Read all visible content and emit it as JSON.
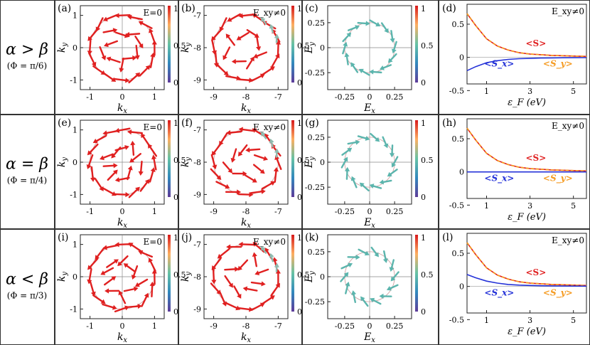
{
  "rows": [
    {
      "condition": "α > β",
      "phi": "(Φ = π/6)",
      "panels": [
        "(a)",
        "(b)",
        "(c)",
        "(d)"
      ]
    },
    {
      "condition": "α = β",
      "phi": "(Φ = π/4)",
      "panels": [
        "(e)",
        "(f)",
        "(g)",
        "(h)"
      ]
    },
    {
      "condition": "α < β",
      "phi": "(Φ = π/3)",
      "panels": [
        "(i)",
        "(j)",
        "(k)",
        "(l)"
      ]
    }
  ],
  "colorbar": {
    "ticks": [
      "1",
      "0.5",
      "0"
    ],
    "colors": [
      "#d7191c",
      "#fdae61",
      "#66c2a5",
      "#3288bd",
      "#5e3c99"
    ]
  },
  "chart_data": [
    {
      "type": "vector-field",
      "panel": "momentum-space spin texture, E=0",
      "annotation": "E=0",
      "xlabel": "k_x",
      "ylabel": "k_y",
      "xlim": [
        -1.3,
        1.3
      ],
      "ylim": [
        -1.3,
        1.3
      ],
      "xticks": [
        "-1",
        "0",
        "1"
      ],
      "yticks": [
        "1",
        "0",
        "-1"
      ],
      "circle_radius": 1.0,
      "arrow_color": "#e02020"
    },
    {
      "type": "vector-field",
      "panel": "momentum-space spin texture, shifted Fermi circle",
      "annotation": "E_xy≠0",
      "xlabel": "k_x",
      "ylabel": "k_y",
      "xlim": [
        -9.3,
        -6.7
      ],
      "ylim": [
        -9.3,
        -6.7
      ],
      "xticks": [
        "-9",
        "-8",
        "-7"
      ],
      "yticks": [
        "-7",
        "-8",
        "-9"
      ],
      "center": [
        -8,
        -8
      ],
      "circle_radius": 1.0,
      "arrow_color": "#e02020"
    },
    {
      "type": "vector-field",
      "panel": "electric-field texture",
      "xlabel": "E_x",
      "ylabel": "E_y",
      "xlim": [
        -0.42,
        0.42
      ],
      "ylim": [
        -0.42,
        0.42
      ],
      "xticks": [
        "-0.25",
        "0",
        "0.25"
      ],
      "yticks": [
        "0.25",
        "0",
        "-0.25"
      ],
      "circle_radius": 0.25,
      "arrow_color": "#5bb5ad"
    },
    {
      "type": "line",
      "annotation": "E_xy≠0",
      "xlabel": "ε_F (eV)",
      "xticks": [
        "1",
        "3",
        "5"
      ],
      "xlim": [
        0.1,
        5.6
      ],
      "ylim": [
        -0.4,
        0.8
      ],
      "yticks": [
        "0.5",
        "0",
        "-0.5"
      ],
      "x": [
        0.1,
        0.5,
        1,
        1.5,
        2,
        2.5,
        3,
        3.5,
        4,
        4.5,
        5,
        5.6
      ],
      "series_by_row": [
        [
          {
            "name": "<S>",
            "color": "#e02020",
            "dash": "solid",
            "values": [
              0.66,
              0.48,
              0.28,
              0.17,
              0.11,
              0.07,
              0.05,
              0.04,
              0.03,
              0.025,
              0.02,
              0.015
            ]
          },
          {
            "name": "<S_y>",
            "color": "#f59b22",
            "dash": "dashed",
            "values": [
              0.66,
              0.48,
              0.28,
              0.17,
              0.11,
              0.07,
              0.05,
              0.04,
              0.03,
              0.025,
              0.02,
              0.015
            ]
          },
          {
            "name": "<S_x>",
            "color": "#2432d8",
            "dash": "solid",
            "values": [
              -0.2,
              -0.14,
              -0.08,
              -0.05,
              -0.03,
              -0.02,
              -0.015,
              -0.01,
              -0.008,
              -0.006,
              -0.005,
              -0.004
            ]
          }
        ],
        [
          {
            "name": "<S>",
            "color": "#e02020",
            "dash": "solid",
            "values": [
              0.66,
              0.48,
              0.28,
              0.17,
              0.11,
              0.07,
              0.05,
              0.04,
              0.03,
              0.025,
              0.02,
              0.015
            ]
          },
          {
            "name": "<S_y>",
            "color": "#f59b22",
            "dash": "dashed",
            "values": [
              0.66,
              0.48,
              0.28,
              0.17,
              0.11,
              0.07,
              0.05,
              0.04,
              0.03,
              0.025,
              0.02,
              0.015
            ]
          },
          {
            "name": "<S_x>",
            "color": "#2432d8",
            "dash": "solid",
            "values": [
              0.0,
              0.0,
              0.0,
              0.0,
              0.0,
              0.0,
              0.0,
              0.0,
              0.0,
              0.0,
              0.0,
              0.0
            ]
          }
        ],
        [
          {
            "name": "<S>",
            "color": "#e02020",
            "dash": "solid",
            "values": [
              0.66,
              0.48,
              0.28,
              0.17,
              0.11,
              0.07,
              0.05,
              0.04,
              0.03,
              0.025,
              0.02,
              0.015
            ]
          },
          {
            "name": "<S_y>",
            "color": "#f59b22",
            "dash": "dashed",
            "values": [
              0.66,
              0.48,
              0.28,
              0.17,
              0.11,
              0.07,
              0.05,
              0.04,
              0.03,
              0.025,
              0.02,
              0.015
            ]
          },
          {
            "name": "<S_x>",
            "color": "#2432d8",
            "dash": "solid",
            "values": [
              0.18,
              0.13,
              0.08,
              0.05,
              0.03,
              0.02,
              0.015,
              0.01,
              0.008,
              0.006,
              0.005,
              0.004
            ]
          }
        ]
      ]
    }
  ]
}
